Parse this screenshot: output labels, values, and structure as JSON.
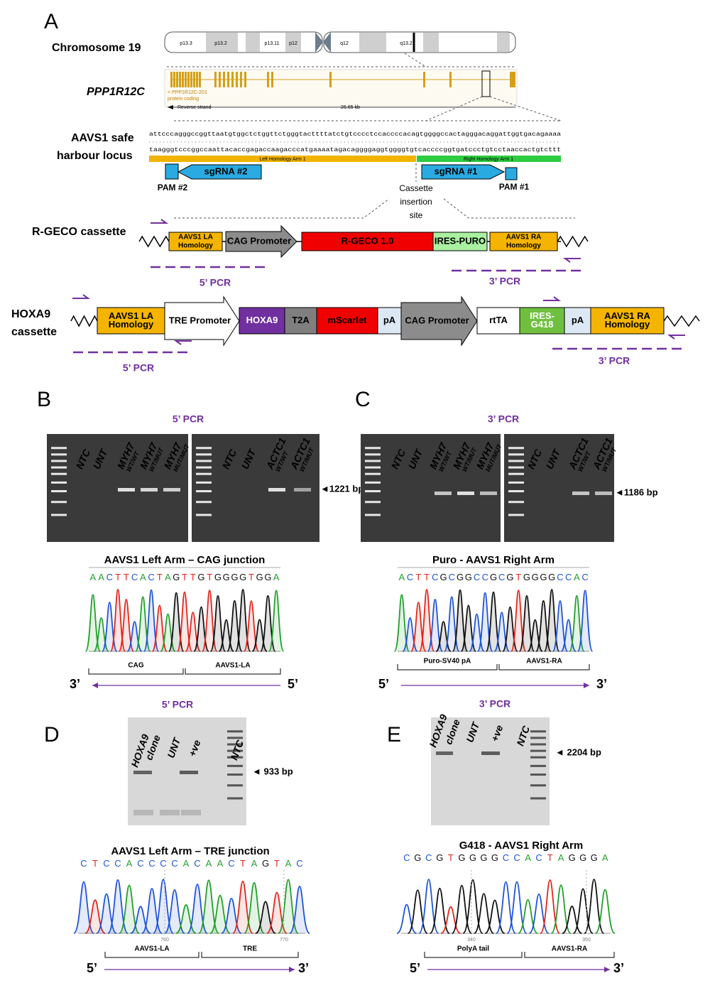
{
  "panel_a": {
    "label": "A",
    "chromosome": {
      "title": "Chromosome 19",
      "bands": [
        "p13.3",
        "p13.2",
        "p13.11",
        "p12",
        "q12",
        "q13.2"
      ]
    },
    "gene": {
      "title": "PPP1R12C",
      "transcript": "< PPP1R12C-201",
      "biotype": "protein coding",
      "strand": "Reverse strand",
      "length": "26.65 kb"
    },
    "locus": {
      "title": [
        "AAVS1 safe",
        "harbour locus"
      ],
      "sequence_top": "attcccagggccggttaatgtggctctggttctgggtacttttatctgtcccctccaccccacagtggggccactagggacaggattggtgacagaaaa",
      "sequence_bottom": "taagggtcccggccaattacaccgagaccaagacccatgaaaatagacaggggaggtggggtgtcaccccggtgatccctgtcctaaccactgtcttt",
      "left_arm": "Left Homology Arm 1",
      "right_arm": "Right Homology Arm 1",
      "sgrna_2": "sgRNA #2",
      "sgrna_1": "sgRNA #1",
      "pam_2": "PAM #2",
      "pam_1": "PAM #1",
      "insertion_site": [
        "Cassette",
        "insertion",
        "site"
      ]
    },
    "rgeco": {
      "title": "R-GECO cassette",
      "elements": [
        [
          "AAVS1 LA",
          "Homology"
        ],
        [
          "CAG Promoter"
        ],
        [
          "R-GECO 1.0"
        ],
        [
          "IRES-PURO"
        ],
        [
          "AAVS1 RA",
          "Homology"
        ]
      ],
      "pcr_5": "5’ PCR",
      "pcr_3": "3’ PCR"
    },
    "hoxa9": {
      "title": [
        "HOXA9",
        "cassette"
      ],
      "elements": [
        [
          "AAVS1 LA",
          "Homology"
        ],
        [
          "TRE Promoter"
        ],
        [
          "HOXA9"
        ],
        [
          "T2A"
        ],
        [
          "mScarlet"
        ],
        [
          "pA"
        ],
        [
          "CAG Promoter"
        ],
        [
          "rtTA"
        ],
        [
          "IRES-",
          "G418"
        ],
        [
          "pA"
        ],
        [
          "AAVS1 RA",
          "Homology"
        ]
      ],
      "pcr_5": "5’ PCR",
      "pcr_3": "3’ PCR"
    }
  },
  "panel_b": {
    "label": "B",
    "pcr": "5’ PCR",
    "gel_1_lanes": [
      [
        "NTC"
      ],
      [
        "UNT"
      ],
      [
        "MYH7",
        "WT/WT"
      ],
      [
        "MYH7",
        "WT/MUT"
      ],
      [
        "MYH7",
        "MUT/MUT"
      ]
    ],
    "gel_2_lanes": [
      [
        "NTC"
      ],
      [
        "UNT"
      ],
      [
        "ACTC1",
        "WT/WT"
      ],
      [
        "ACTC1",
        "WT/MUT"
      ]
    ],
    "band_size": "◄1221 bp",
    "trace_title": "AAVS1 Left Arm – CAG junction",
    "sequence": "AACTTCACTAGTTGTGGGGTGGA",
    "regions": [
      "CAG",
      "AAVS1-LA"
    ],
    "left_end": "3’",
    "right_end": "5’"
  },
  "panel_c": {
    "label": "C",
    "pcr": "3’ PCR",
    "gel_1_lanes": [
      [
        "NTC"
      ],
      [
        "UNT"
      ],
      [
        "MYH7",
        "WT/WT"
      ],
      [
        "MYH7",
        "WT/MUT"
      ],
      [
        "MYH7",
        "MUT/MUT"
      ]
    ],
    "gel_2_lanes": [
      [
        "NTC"
      ],
      [
        "UNT"
      ],
      [
        "ACTC1",
        "WT/WT"
      ],
      [
        "ACTC1",
        "WT/MUT"
      ]
    ],
    "band_size": "◄1186 bp",
    "trace_title": "Puro - AAVS1 Right Arm",
    "sequence": "ACTTCGCGGCCGCGTGGGGCCAC",
    "regions": [
      "Puro-SV40 pA",
      "AAVS1-RA"
    ],
    "left_end": "5’",
    "right_end": "3’"
  },
  "panel_d": {
    "label": "D",
    "pcr": "5’ PCR",
    "lanes": [
      "HOXA9",
      "clone",
      "UNT",
      "+ve",
      "NTC"
    ],
    "band_size": "◄ 933 bp",
    "trace_title": "AAVS1 Left Arm – TRE junction",
    "sequence": "CTCCACCCCACAACTAGTAC",
    "positions": [
      "760",
      "770"
    ],
    "regions": [
      "AAVS1-LA",
      "TRE"
    ],
    "left_end": "5’",
    "right_end": "3’"
  },
  "panel_e": {
    "label": "E",
    "pcr": "3’ PCR",
    "lanes": [
      "HOXA9",
      "clone",
      "UNT",
      "+ve",
      "NTC"
    ],
    "band_size": "◄ 2204 bp",
    "trace_title": "G418 - AAVS1 Right Arm",
    "sequence": "CGCGTGGGGCCACTAGGGA",
    "positions": [
      "340",
      "350"
    ],
    "regions": [
      "PolyA tail",
      "AAVS1-RA"
    ],
    "left_end": "5’",
    "right_end": "3’"
  }
}
